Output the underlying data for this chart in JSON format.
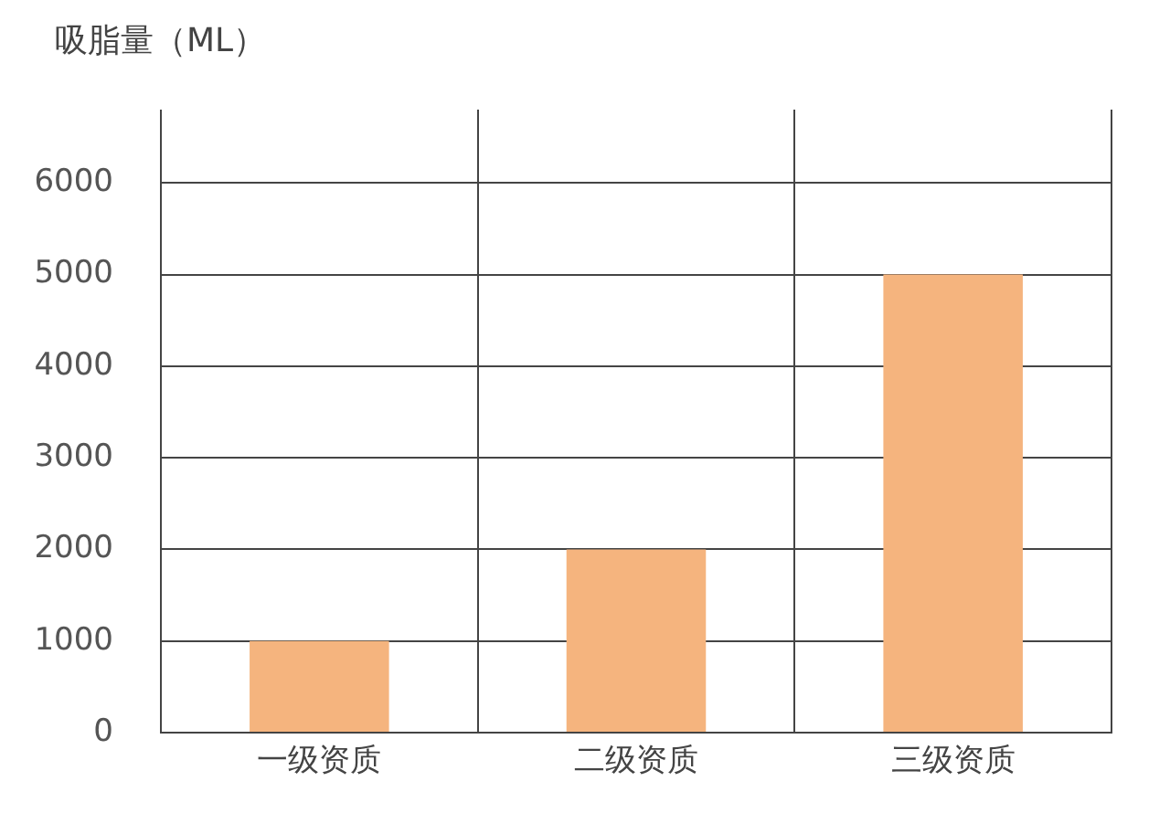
{
  "chart_data": {
    "type": "bar",
    "ylabel": "吸脂量（ML）",
    "categories": [
      "一级资质",
      "二级资质",
      "三级资质"
    ],
    "values": [
      1000,
      2000,
      5000
    ],
    "color": "#f5b47e",
    "ylim": [
      0,
      6800
    ],
    "yticks": [
      0,
      1000,
      2000,
      3000,
      4000,
      5000,
      6000
    ],
    "grid": true
  }
}
